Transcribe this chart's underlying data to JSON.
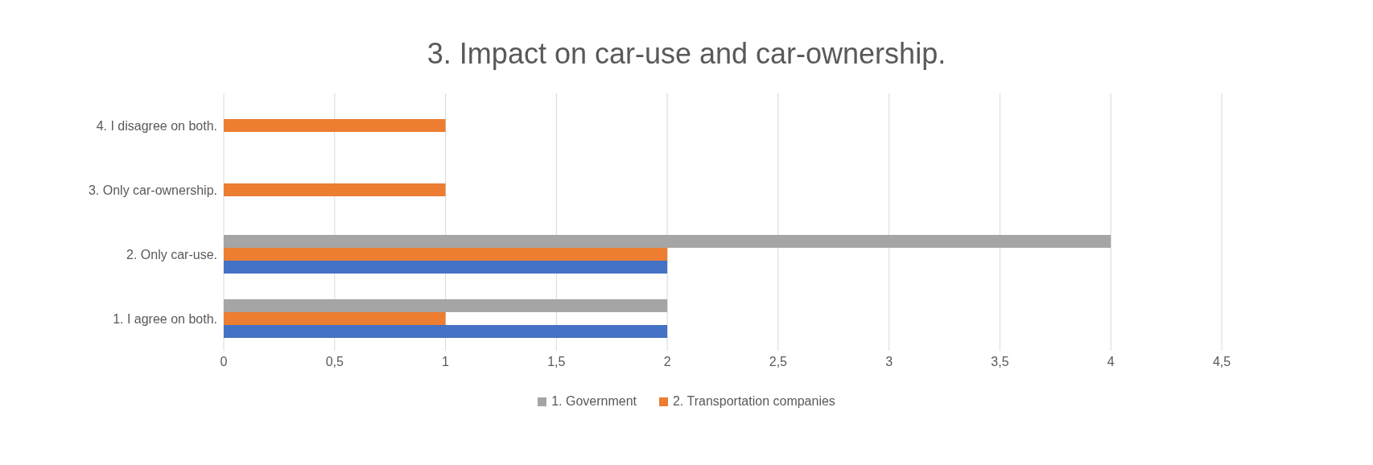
{
  "chart_data": {
    "type": "bar",
    "orientation": "horizontal",
    "title": "3. Impact on car-use and car-ownership.",
    "categories": [
      "4. I disagree on both.",
      "3. Only car-ownership.",
      "2. Only car-use.",
      "1. I agree on both."
    ],
    "series": [
      {
        "name": "1. Government",
        "color": "#a5a5a5",
        "values": [
          null,
          null,
          4,
          2
        ]
      },
      {
        "name": "2. Transportation companies",
        "color": "#ed7d31",
        "values": [
          1,
          1,
          2,
          1
        ]
      },
      {
        "color": "#4472c4",
        "values": [
          null,
          null,
          2,
          2
        ]
      }
    ],
    "xlim": [
      0,
      4.5
    ],
    "xticks": [
      0,
      {
        "value": 0.5,
        "label": "0,5"
      },
      1,
      {
        "value": 1.5,
        "label": "1,5"
      },
      2,
      {
        "value": 2.5,
        "label": "2,5"
      },
      3,
      {
        "value": 3.5,
        "label": "3,5"
      },
      4,
      {
        "value": 4.5,
        "label": "4,5"
      }
    ],
    "grid": "x",
    "legend": "bottom"
  }
}
